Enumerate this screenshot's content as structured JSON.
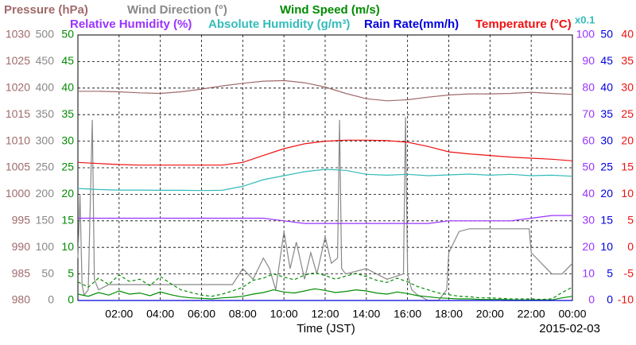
{
  "chart_data": {
    "type": "line",
    "xlabel": "Time (JST)",
    "date_label": "2015-02-03",
    "xlim": [
      0,
      24
    ],
    "xticks": [
      {
        "value": 2,
        "label": "02:00"
      },
      {
        "value": 4,
        "label": "04:00"
      },
      {
        "value": 6,
        "label": "06:00"
      },
      {
        "value": 8,
        "label": "08:00"
      },
      {
        "value": 10,
        "label": "10:00"
      },
      {
        "value": 12,
        "label": "12:00"
      },
      {
        "value": 14,
        "label": "14:00"
      },
      {
        "value": 16,
        "label": "16:00"
      },
      {
        "value": 18,
        "label": "18:00"
      },
      {
        "value": 20,
        "label": "20:00"
      },
      {
        "value": 22,
        "label": "22:00"
      },
      {
        "value": 24,
        "label": "00:00"
      }
    ],
    "grid": true,
    "axes": [
      {
        "side": "left",
        "color": "#a06a6a",
        "ylim": [
          980,
          1030
        ],
        "yticks": [
          980,
          985,
          990,
          995,
          1000,
          1005,
          1010,
          1015,
          1020,
          1025,
          1030
        ]
      },
      {
        "side": "left",
        "color": "#888888",
        "ylim": [
          0,
          500
        ],
        "yticks": [
          0,
          50,
          100,
          150,
          200,
          250,
          300,
          350,
          400,
          450,
          500
        ]
      },
      {
        "side": "left",
        "color": "#008c00",
        "ylim": [
          0,
          50
        ],
        "yticks": [
          0,
          5,
          10,
          15,
          20,
          25,
          30,
          35,
          40,
          45,
          50
        ]
      },
      {
        "side": "right",
        "color": "#9a33ff",
        "ylim": [
          0,
          100
        ],
        "yticks": [
          0,
          10,
          20,
          30,
          40,
          50,
          60,
          70,
          80,
          90,
          100
        ]
      },
      {
        "side": "right",
        "color": "#0000dd",
        "ylim": [
          0,
          50
        ],
        "yticks": [
          0,
          5,
          10,
          15,
          20,
          25,
          30,
          35,
          40,
          45,
          50
        ]
      },
      {
        "side": "right",
        "color": "#ee1111",
        "ylim": [
          -10,
          40
        ],
        "yticks": [
          -10,
          -5,
          0,
          5,
          10,
          15,
          20,
          25,
          30,
          35,
          40
        ]
      }
    ],
    "x": [
      0,
      1,
      2,
      3,
      4,
      5,
      6,
      7,
      8,
      9,
      10,
      11,
      12,
      13,
      14,
      15,
      16,
      17,
      18,
      19,
      20,
      21,
      22,
      23,
      24
    ],
    "series": [
      {
        "name": "Pressure (hPa)",
        "axis": 0,
        "color": "#a06a6a",
        "values": [
          1019.4,
          1019.4,
          1019.3,
          1019.1,
          1019.0,
          1019.3,
          1019.8,
          1020.4,
          1020.9,
          1021.3,
          1021.4,
          1021.0,
          1020.2,
          1019.0,
          1018.0,
          1017.6,
          1017.8,
          1018.3,
          1018.7,
          1018.9,
          1018.9,
          1019.0,
          1019.2,
          1019.0,
          1018.8
        ]
      },
      {
        "name": "Wind Direction (°)",
        "axis": 1,
        "color": "#888888",
        "x": [
          0,
          0.1,
          0.2,
          0.3,
          0.5,
          0.6,
          0.7,
          0.8,
          1.0,
          1.5,
          2,
          4,
          6,
          7.5,
          8,
          8.5,
          9,
          9.3,
          9.6,
          10,
          10.3,
          10.6,
          11,
          11.3,
          11.6,
          12,
          12.3,
          12.6,
          12.7,
          12.8,
          13,
          14,
          15,
          15.8,
          15.9,
          16,
          16.2,
          16.5,
          17,
          17.5,
          17.9,
          18,
          18.5,
          19,
          20,
          21,
          21.9,
          22,
          23,
          23.5,
          24
        ],
        "values": [
          80,
          200,
          30,
          10,
          20,
          180,
          340,
          40,
          20,
          30,
          30,
          30,
          30,
          30,
          60,
          40,
          80,
          60,
          20,
          130,
          60,
          110,
          40,
          90,
          50,
          120,
          70,
          80,
          340,
          60,
          50,
          60,
          40,
          50,
          345,
          50,
          20,
          10,
          0,
          0,
          20,
          90,
          130,
          135,
          135,
          135,
          135,
          90,
          50,
          50,
          70
        ]
      },
      {
        "name": "Wind Speed (m/s)",
        "axis": 2,
        "color": "#008c00",
        "x": [
          0,
          0.5,
          1,
          1.5,
          2,
          2.5,
          3,
          3.5,
          4,
          4.5,
          5,
          5.5,
          6,
          6.5,
          7,
          7.5,
          8,
          8.5,
          9,
          9.5,
          10,
          10.5,
          11,
          11.5,
          12,
          12.5,
          13,
          13.5,
          14,
          14.5,
          15,
          15.5,
          16,
          16.5,
          17,
          17.5,
          18,
          18.5,
          19,
          19.5,
          20,
          20.5,
          21,
          21.5,
          22,
          22.5,
          23,
          23.5,
          24
        ],
        "values": [
          1.2,
          0.8,
          1.5,
          1.0,
          1.8,
          1.2,
          1.4,
          0.9,
          1.6,
          1.1,
          0.7,
          0.5,
          0.4,
          0.3,
          0.5,
          0.6,
          0.8,
          1.2,
          1.5,
          2.0,
          1.6,
          1.4,
          1.8,
          2.2,
          1.9,
          1.5,
          1.7,
          2.0,
          1.8,
          1.4,
          1.2,
          1.6,
          1.3,
          0.9,
          0.7,
          0.5,
          0.4,
          0.3,
          0.3,
          0.2,
          0.2,
          0.2,
          0.1,
          0.1,
          0.1,
          0.1,
          0.1,
          0.5,
          0.8
        ]
      },
      {
        "axis": 2,
        "color": "#008c00",
        "dashed": true,
        "x": [
          0,
          0.5,
          1,
          1.5,
          2,
          2.5,
          3,
          3.5,
          4,
          4.5,
          5,
          5.5,
          6,
          6.5,
          7,
          7.5,
          8,
          8.5,
          9,
          9.5,
          10,
          10.5,
          11,
          11.5,
          12,
          12.5,
          13,
          13.5,
          14,
          14.5,
          15,
          15.5,
          16,
          16.5,
          17,
          17.5,
          18,
          18.5,
          19,
          19.5,
          20,
          20.5,
          21,
          21.5,
          22,
          22.5,
          23,
          23.5,
          24
        ],
        "values": [
          3.5,
          2.5,
          4.2,
          3.0,
          4.8,
          3.6,
          4.0,
          2.8,
          4.5,
          3.2,
          2.0,
          1.5,
          1.0,
          0.8,
          1.2,
          1.8,
          2.5,
          3.8,
          4.2,
          5.0,
          4.4,
          3.9,
          4.8,
          5.2,
          4.7,
          4.0,
          4.6,
          5.1,
          4.5,
          3.8,
          3.4,
          4.2,
          3.5,
          2.6,
          2.0,
          1.4,
          1.1,
          0.8,
          0.7,
          0.5,
          0.5,
          0.4,
          0.3,
          0.3,
          0.3,
          0.2,
          0.3,
          1.5,
          2.5
        ]
      },
      {
        "name": "Relative Humidity (%)",
        "axis": 3,
        "color": "#9a33ff",
        "values": [
          31,
          31,
          31,
          31,
          31,
          31,
          31,
          31,
          31,
          31,
          30,
          29,
          29,
          29,
          29,
          29,
          29,
          29,
          30,
          30,
          30,
          30,
          31,
          32,
          32
        ]
      },
      {
        "name": "Absolute Humidity (g/m³)",
        "axis": 3,
        "color": "#33bbbb",
        "scale_label": "x0.1",
        "values": [
          42.2,
          41.8,
          41.6,
          41.6,
          41.5,
          41.5,
          41.4,
          41.5,
          43.0,
          45.5,
          47.0,
          48.5,
          49.4,
          49.0,
          47.5,
          47.2,
          47.5,
          47.0,
          47.3,
          47.6,
          47.2,
          47.5,
          47.0,
          47.2,
          46.8
        ]
      },
      {
        "name": "Rain Rate(mm/h)",
        "axis": 4,
        "color": "#0000dd",
        "values": [
          0,
          0,
          0,
          0,
          0,
          0,
          0,
          0,
          0,
          0,
          0,
          0,
          0,
          0,
          0,
          0,
          0,
          0,
          0,
          0,
          0,
          0,
          0,
          0,
          0
        ]
      },
      {
        "name": "Temperature (°C)",
        "axis": 5,
        "color": "#ee1111",
        "values": [
          16.0,
          15.8,
          15.6,
          15.5,
          15.5,
          15.5,
          15.5,
          15.5,
          16.0,
          17.3,
          18.6,
          19.5,
          20.0,
          20.2,
          20.2,
          20.1,
          19.8,
          19.0,
          18.0,
          17.6,
          17.3,
          17.0,
          16.8,
          16.6,
          16.3
        ]
      }
    ]
  }
}
